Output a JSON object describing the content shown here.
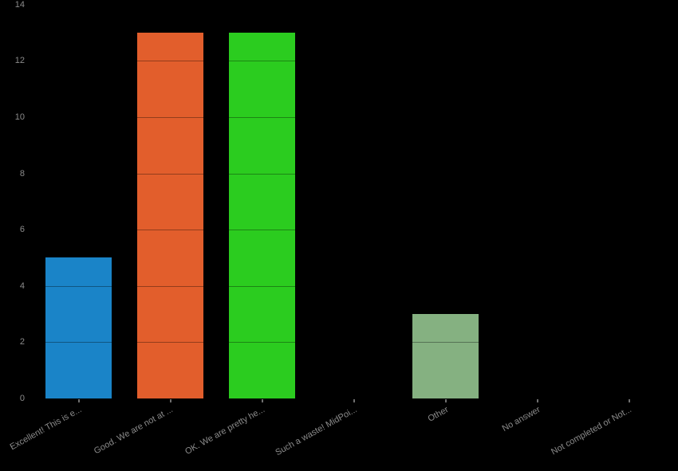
{
  "page": {
    "background_color": "#000000",
    "axis_text_color": "#8b8b8b"
  },
  "chart_data": {
    "type": "bar",
    "title": "",
    "xlabel": "",
    "ylabel": "",
    "categories": [
      "Excellent! This is e...",
      "Good. We are not at ...",
      "OK. We are pretty he...",
      "Such a waste! MidPoi...",
      "Other",
      "No answer",
      "Not completed or Not..."
    ],
    "values": [
      5,
      13,
      13,
      0,
      3,
      0,
      0
    ],
    "bar_colors": [
      "#1a84c8",
      "#e25e2c",
      "#2bcc1f",
      "",
      "#85b181",
      "",
      ""
    ],
    "ylim": [
      0,
      14
    ],
    "yticks": [
      0,
      2,
      4,
      6,
      8,
      10,
      12,
      14
    ],
    "grid": "horizontal dark lines at even values, drawn over bars",
    "legend_position": "none",
    "x_label_rotation_deg": -29
  }
}
